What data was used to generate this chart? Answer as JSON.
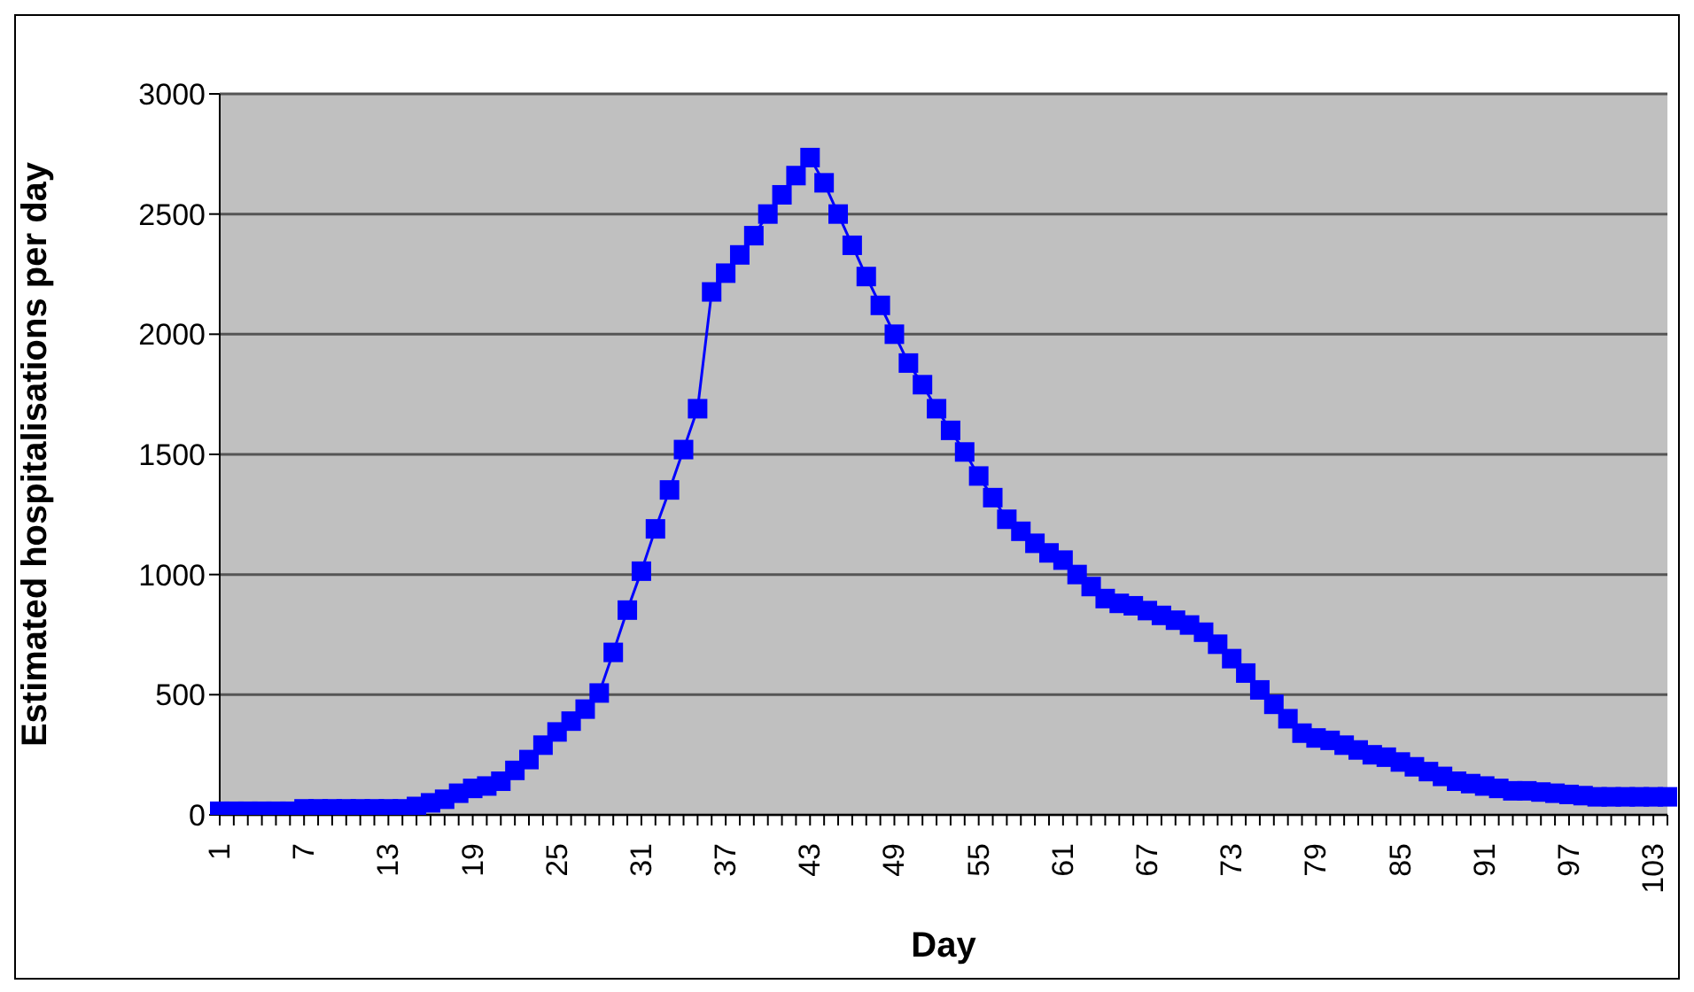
{
  "chart_data": {
    "type": "line",
    "xlabel": "Day",
    "ylabel": "Estimated hospitalisations per day",
    "categories": [
      "1",
      null,
      null,
      null,
      null,
      null,
      "7",
      null,
      null,
      null,
      null,
      null,
      "13",
      null,
      null,
      null,
      null,
      null,
      "19",
      null,
      null,
      null,
      null,
      null,
      "25",
      null,
      null,
      null,
      null,
      null,
      "31",
      null,
      null,
      null,
      null,
      null,
      "37",
      null,
      null,
      null,
      null,
      null,
      "43",
      null,
      null,
      null,
      null,
      null,
      "49",
      null,
      null,
      null,
      null,
      null,
      "55",
      null,
      null,
      null,
      null,
      null,
      "61",
      null,
      null,
      null,
      null,
      null,
      "67",
      null,
      null,
      null,
      null,
      null,
      "73",
      null,
      null,
      null,
      null,
      null,
      "79",
      null,
      null,
      null,
      null,
      null,
      "85",
      null,
      null,
      null,
      null,
      null,
      "91",
      null,
      null,
      null,
      null,
      null,
      "97",
      null,
      null,
      null,
      null,
      null,
      "103",
      null
    ],
    "series": [
      {
        "color": "#0000ff",
        "values": [
          15,
          15,
          15,
          15,
          15,
          15,
          25,
          25,
          25,
          25,
          25,
          25,
          25,
          25,
          35,
          50,
          65,
          90,
          110,
          120,
          140,
          185,
          230,
          290,
          345,
          390,
          440,
          507,
          676,
          852,
          1014,
          1190,
          1352,
          1520,
          1690,
          2176,
          2254,
          2330,
          2410,
          2500,
          2580,
          2660,
          2735,
          2630,
          2500,
          2370,
          2240,
          2120,
          2000,
          1880,
          1790,
          1690,
          1600,
          1510,
          1410,
          1320,
          1230,
          1180,
          1130,
          1090,
          1060,
          1000,
          950,
          900,
          880,
          870,
          850,
          830,
          810,
          790,
          760,
          710,
          650,
          590,
          520,
          460,
          400,
          340,
          320,
          310,
          290,
          270,
          250,
          240,
          220,
          200,
          180,
          160,
          140,
          130,
          120,
          110,
          100,
          100,
          95,
          90,
          85,
          80,
          75,
          75,
          75,
          75,
          75,
          75
        ]
      }
    ],
    "ylim": [
      0,
      3000
    ],
    "yticks": [
      0,
      500,
      1000,
      1500,
      2000,
      2500,
      3000
    ],
    "grid": "y",
    "marker": "square",
    "line_style": "solid",
    "legend": false
  }
}
